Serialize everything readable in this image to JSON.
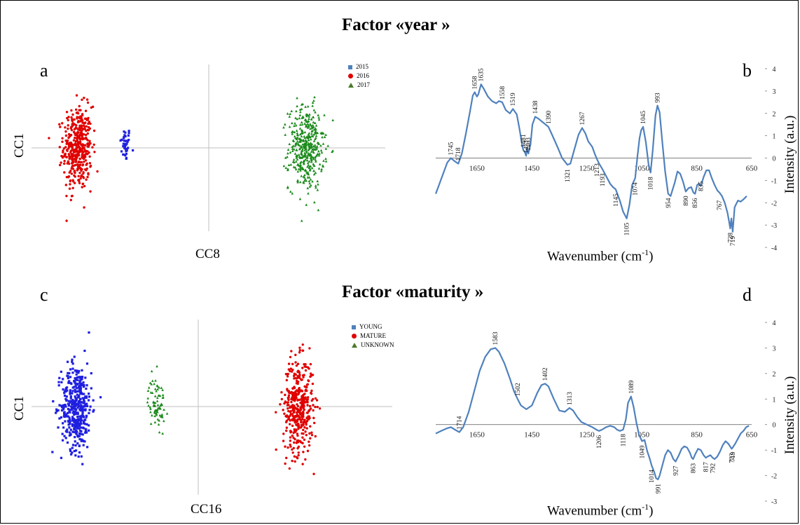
{
  "figure": {
    "title_top": "Factor «year »",
    "title_bottom": "Factor «maturity »",
    "panel_a": "a",
    "panel_b": "b",
    "panel_c": "c",
    "panel_d": "d"
  },
  "colors": {
    "blue": "#1f1fe0",
    "red": "#e00000",
    "green": "#1a8a1a",
    "line": "#4f81bd",
    "axis": "#bfbfbf"
  },
  "chart_data": [
    {
      "id": "a",
      "type": "scatter",
      "title": "",
      "xlabel": "CC8",
      "ylabel": "CC1",
      "xlim": [
        -1,
        1
      ],
      "ylim": [
        -1,
        1
      ],
      "series": [
        {
          "name": "2015",
          "marker": "square",
          "color": "#1f1fe0",
          "x_center": -0.47,
          "x_spread": 0.03,
          "y_center": 0.05,
          "y_spread": 0.25,
          "n": 40
        },
        {
          "name": "2016",
          "marker": "circle",
          "color": "#e00000",
          "x_center": -0.74,
          "x_spread": 0.08,
          "y_center": 0.0,
          "y_spread": 0.6,
          "n": 420
        },
        {
          "name": "2017",
          "marker": "triangle",
          "color": "#1a8a1a",
          "x_center": 0.55,
          "x_spread": 0.1,
          "y_center": 0.0,
          "y_spread": 0.6,
          "n": 420
        }
      ]
    },
    {
      "id": "b",
      "type": "line",
      "title": "",
      "xlabel": "Wavenumber (cm",
      "xlabel_sup": "-1",
      "xlabel_suffix": ")",
      "ylabel": "Intensity (a.u.)",
      "xlim": [
        1800,
        650
      ],
      "ylim": [
        -4,
        4
      ],
      "xticks": [
        1650,
        1450,
        1250,
        1050,
        850,
        650
      ],
      "yticks": [
        4,
        3,
        2,
        1,
        0,
        -1,
        -2,
        -3,
        -4
      ],
      "x": [
        1800,
        1785,
        1770,
        1758,
        1745,
        1730,
        1718,
        1705,
        1690,
        1675,
        1665,
        1658,
        1650,
        1645,
        1635,
        1625,
        1610,
        1595,
        1580,
        1570,
        1558,
        1545,
        1530,
        1519,
        1505,
        1495,
        1485,
        1481,
        1475,
        1471,
        1468,
        1463,
        1455,
        1448,
        1438,
        1425,
        1410,
        1390,
        1375,
        1355,
        1340,
        1330,
        1321,
        1310,
        1295,
        1280,
        1267,
        1255,
        1245,
        1230,
        1220,
        1213,
        1205,
        1193,
        1180,
        1165,
        1155,
        1145,
        1130,
        1118,
        1105,
        1095,
        1085,
        1074,
        1065,
        1058,
        1052,
        1045,
        1035,
        1025,
        1018,
        1010,
        1000,
        993,
        985,
        975,
        965,
        954,
        945,
        930,
        920,
        910,
        900,
        890,
        880,
        870,
        862,
        856,
        848,
        842,
        835,
        825,
        815,
        805,
        795,
        785,
        775,
        767,
        758,
        748,
        738,
        732,
        728,
        724,
        719,
        712,
        700,
        690,
        680,
        672,
        668
      ],
      "y": [
        -1.6,
        -1.1,
        -0.6,
        -0.2,
        0.0,
        -0.15,
        -0.25,
        0.2,
        1.1,
        2.1,
        2.8,
        2.95,
        2.75,
        2.85,
        3.3,
        3.1,
        2.75,
        2.55,
        2.45,
        2.55,
        2.5,
        2.15,
        2.0,
        2.2,
        1.95,
        1.3,
        0.55,
        0.35,
        0.25,
        0.1,
        0.45,
        0.2,
        0.6,
        1.5,
        1.85,
        1.75,
        1.6,
        1.4,
        1.0,
        0.45,
        0.0,
        -0.15,
        -0.3,
        -0.25,
        0.4,
        1.05,
        1.35,
        1.1,
        0.75,
        0.5,
        0.15,
        -0.05,
        -0.25,
        -0.5,
        -0.8,
        -1.15,
        -1.3,
        -1.4,
        -1.9,
        -2.4,
        -2.7,
        -2.1,
        -1.2,
        -0.9,
        0.15,
        0.9,
        1.25,
        1.4,
        0.7,
        -0.3,
        -0.65,
        0.35,
        1.9,
        2.35,
        2.05,
        0.7,
        -0.6,
        -1.6,
        -1.7,
        -1.1,
        -0.6,
        -0.7,
        -1.05,
        -1.5,
        -1.35,
        -1.3,
        -1.55,
        -1.6,
        -1.2,
        -1.15,
        -1.25,
        -0.85,
        -0.55,
        -0.55,
        -0.9,
        -1.2,
        -1.45,
        -1.55,
        -1.7,
        -2.0,
        -2.45,
        -2.85,
        -3.15,
        -2.7,
        -3.3,
        -2.2,
        -1.9,
        -1.95,
        -1.85,
        -1.75,
        -1.7
      ],
      "annotations": [
        {
          "text": "1745",
          "x": 1745,
          "y": 0.0
        },
        {
          "text": "1718",
          "x": 1718,
          "y": -0.25
        },
        {
          "text": "1658",
          "x": 1658,
          "y": 2.95
        },
        {
          "text": "1635",
          "x": 1635,
          "y": 3.3
        },
        {
          "text": "1558",
          "x": 1558,
          "y": 2.5
        },
        {
          "text": "1519",
          "x": 1519,
          "y": 2.2
        },
        {
          "text": "1481",
          "x": 1481,
          "y": 0.35
        },
        {
          "text": "1471",
          "x": 1471,
          "y": 0.1
        },
        {
          "text": "1463",
          "x": 1463,
          "y": 0.2
        },
        {
          "text": "1438",
          "x": 1438,
          "y": 1.85
        },
        {
          "text": "1390",
          "x": 1390,
          "y": 1.4
        },
        {
          "text": "1321",
          "x": 1321,
          "y": -0.3
        },
        {
          "text": "1267",
          "x": 1267,
          "y": 1.35
        },
        {
          "text": "1213",
          "x": 1213,
          "y": -0.05
        },
        {
          "text": "1193",
          "x": 1193,
          "y": -0.5
        },
        {
          "text": "1145",
          "x": 1145,
          "y": -1.4
        },
        {
          "text": "1105",
          "x": 1105,
          "y": -2.7
        },
        {
          "text": "1074",
          "x": 1074,
          "y": -0.9
        },
        {
          "text": "1045",
          "x": 1045,
          "y": 1.4
        },
        {
          "text": "1018",
          "x": 1018,
          "y": -0.65
        },
        {
          "text": "993",
          "x": 993,
          "y": 2.35
        },
        {
          "text": "954",
          "x": 954,
          "y": -1.6
        },
        {
          "text": "890",
          "x": 890,
          "y": -1.5
        },
        {
          "text": "856",
          "x": 856,
          "y": -1.6
        },
        {
          "text": "835",
          "x": 835,
          "y": -0.85
        },
        {
          "text": "767",
          "x": 767,
          "y": -1.7
        },
        {
          "text": "728",
          "x": 728,
          "y": -3.15
        },
        {
          "text": "719",
          "x": 719,
          "y": -3.3
        }
      ]
    },
    {
      "id": "c",
      "type": "scatter",
      "title": "",
      "xlabel": "CC16",
      "ylabel": "CC1",
      "xlim": [
        -1,
        1
      ],
      "ylim": [
        -1,
        1
      ],
      "series": [
        {
          "name": "YOUNG",
          "marker": "square",
          "color": "#1f1fe0",
          "x_center": -0.73,
          "x_spread": 0.09,
          "y_center": 0.0,
          "y_spread": 0.6,
          "n": 420
        },
        {
          "name": "MATURE",
          "marker": "circle",
          "color": "#e00000",
          "x_center": 0.6,
          "x_spread": 0.09,
          "y_center": 0.0,
          "y_spread": 0.65,
          "n": 420
        },
        {
          "name": "UNKNOWN",
          "marker": "triangle",
          "color": "#1a8a1a",
          "x_center": -0.25,
          "x_spread": 0.05,
          "y_center": 0.05,
          "y_spread": 0.35,
          "n": 80
        }
      ]
    },
    {
      "id": "d",
      "type": "line",
      "title": "",
      "xlabel": "Wavenumber (cm",
      "xlabel_sup": "-1",
      "xlabel_suffix": ")",
      "ylabel": "Intensity (a.u.)",
      "xlim": [
        1800,
        650
      ],
      "ylim": [
        -3,
        4
      ],
      "xticks": [
        1650,
        1450,
        1250,
        1050,
        850,
        650
      ],
      "yticks": [
        4,
        3,
        2,
        1,
        0,
        -1,
        -2,
        -3
      ],
      "x": [
        1800,
        1780,
        1760,
        1745,
        1730,
        1714,
        1700,
        1680,
        1660,
        1640,
        1620,
        1600,
        1583,
        1570,
        1550,
        1530,
        1515,
        1502,
        1490,
        1470,
        1450,
        1430,
        1415,
        1402,
        1390,
        1370,
        1350,
        1330,
        1313,
        1300,
        1285,
        1270,
        1250,
        1230,
        1215,
        1206,
        1195,
        1180,
        1165,
        1150,
        1140,
        1130,
        1118,
        1108,
        1100,
        1089,
        1080,
        1070,
        1060,
        1049,
        1040,
        1030,
        1022,
        1014,
        1005,
        998,
        991,
        985,
        975,
        965,
        955,
        945,
        935,
        927,
        915,
        905,
        895,
        885,
        875,
        868,
        863,
        855,
        845,
        835,
        825,
        817,
        810,
        800,
        792,
        785,
        775,
        765,
        755,
        745,
        735,
        723,
        719,
        710,
        700,
        690,
        680,
        670,
        660
      ],
      "y": [
        -0.35,
        -0.25,
        -0.15,
        -0.1,
        -0.2,
        -0.3,
        -0.1,
        0.5,
        1.3,
        2.1,
        2.65,
        2.95,
        3.0,
        2.85,
        2.4,
        1.8,
        1.3,
        1.0,
        0.75,
        0.6,
        0.75,
        1.25,
        1.55,
        1.6,
        1.5,
        1.0,
        0.55,
        0.5,
        0.65,
        0.55,
        0.3,
        0.1,
        0.0,
        -0.1,
        -0.2,
        -0.25,
        -0.2,
        -0.1,
        -0.05,
        -0.1,
        -0.2,
        -0.25,
        -0.2,
        0.2,
        0.85,
        1.1,
        0.7,
        0.1,
        -0.4,
        -0.65,
        -0.6,
        -1.05,
        -1.3,
        -1.6,
        -1.85,
        -2.1,
        -2.15,
        -2.0,
        -1.6,
        -1.2,
        -1.0,
        -1.1,
        -1.35,
        -1.45,
        -1.2,
        -0.95,
        -0.85,
        -0.9,
        -1.1,
        -1.3,
        -1.35,
        -1.15,
        -0.95,
        -1.0,
        -1.2,
        -1.3,
        -1.25,
        -1.2,
        -1.3,
        -1.35,
        -1.25,
        -1.05,
        -0.8,
        -0.65,
        -0.75,
        -0.95,
        -0.9,
        -0.75,
        -0.55,
        -0.35,
        -0.25,
        -0.1,
        -0.05
      ],
      "annotations": [
        {
          "text": "1714",
          "x": 1714,
          "y": -0.3
        },
        {
          "text": "1583",
          "x": 1583,
          "y": 3.0
        },
        {
          "text": "1502",
          "x": 1502,
          "y": 1.0
        },
        {
          "text": "1402",
          "x": 1402,
          "y": 1.6
        },
        {
          "text": "1313",
          "x": 1313,
          "y": 0.65
        },
        {
          "text": "1206",
          "x": 1206,
          "y": -0.25
        },
        {
          "text": "1118",
          "x": 1118,
          "y": -0.2
        },
        {
          "text": "1089",
          "x": 1089,
          "y": 1.1
        },
        {
          "text": "1049",
          "x": 1049,
          "y": -0.65
        },
        {
          "text": "1014",
          "x": 1014,
          "y": -1.6
        },
        {
          "text": "991",
          "x": 991,
          "y": -2.15
        },
        {
          "text": "927",
          "x": 927,
          "y": -1.45
        },
        {
          "text": "863",
          "x": 863,
          "y": -1.35
        },
        {
          "text": "817",
          "x": 817,
          "y": -1.3
        },
        {
          "text": "792",
          "x": 792,
          "y": -1.35
        },
        {
          "text": "723",
          "x": 723,
          "y": -0.95
        },
        {
          "text": "719",
          "x": 719,
          "y": -0.9
        }
      ]
    }
  ]
}
